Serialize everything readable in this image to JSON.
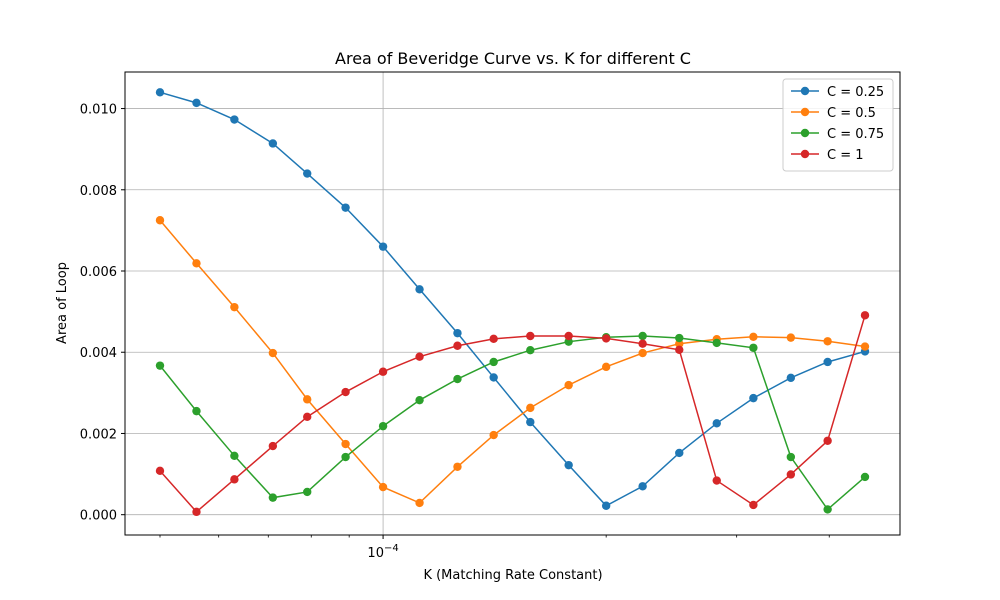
{
  "chart_data": {
    "type": "line",
    "title": "Area of Beveridge Curve vs. K for different C",
    "xlabel": "K (Matching Rate Constant)",
    "ylabel": "Area of Loop",
    "x_scale": "log",
    "x_major_tick_label": "10^-4",
    "x": [
      5e-05,
      5.6e-05,
      6.3e-05,
      7.1e-05,
      7.9e-05,
      8.9e-05,
      0.0001,
      0.000112,
      0.000126,
      0.000141,
      0.000158,
      0.000178,
      0.0002,
      0.000224,
      0.000251,
      0.000282,
      0.000316,
      0.000355,
      0.000398,
      0.000447
    ],
    "ylim": [
      -0.0005,
      0.0109
    ],
    "yticks": [
      "0.000",
      "0.002",
      "0.004",
      "0.006",
      "0.008",
      "0.010"
    ],
    "grid": true,
    "legend_position": "upper right",
    "series": [
      {
        "name": "C = 0.25",
        "color": "#1f77b4",
        "values": [
          0.0104,
          0.01014,
          0.00973,
          0.00914,
          0.0084,
          0.00756,
          0.0066,
          0.00555,
          0.00447,
          0.00338,
          0.00228,
          0.00122,
          0.00022,
          0.0007,
          0.00152,
          0.00225,
          0.00287,
          0.00337,
          0.00376,
          0.00402
        ]
      },
      {
        "name": "C = 0.5",
        "color": "#ff7f0e",
        "values": [
          0.00725,
          0.00619,
          0.00511,
          0.00398,
          0.00284,
          0.00174,
          0.00068,
          0.00029,
          0.00118,
          0.00196,
          0.00263,
          0.00319,
          0.00364,
          0.00398,
          0.00421,
          0.00432,
          0.00438,
          0.00436,
          0.00427,
          0.00414
        ]
      },
      {
        "name": "C = 0.75",
        "color": "#2ca02c",
        "values": [
          0.00367,
          0.00255,
          0.00145,
          0.00042,
          0.00056,
          0.00142,
          0.00218,
          0.00282,
          0.00334,
          0.00376,
          0.00405,
          0.00426,
          0.00437,
          0.0044,
          0.00435,
          0.00423,
          0.00411,
          0.00142,
          0.00013,
          0.00093
        ]
      },
      {
        "name": "C = 1",
        "color": "#d62728",
        "values": [
          0.00108,
          7e-05,
          0.00087,
          0.00169,
          0.00241,
          0.00302,
          0.00352,
          0.00389,
          0.00416,
          0.00433,
          0.0044,
          0.0044,
          0.00434,
          0.00421,
          0.00406,
          0.00084,
          0.00024,
          0.00099,
          0.00182,
          0.00491
        ]
      }
    ]
  }
}
